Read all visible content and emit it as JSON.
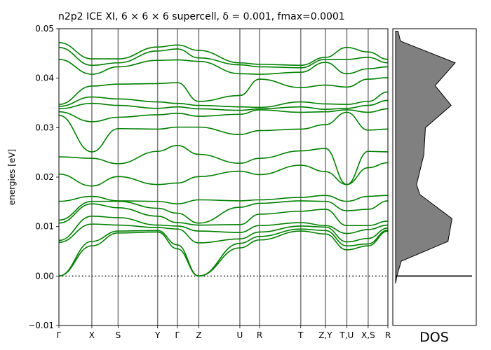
{
  "chart_data": [
    {
      "type": "line",
      "title": "n2p2 ICE XI, 6 × 6 × 6 supercell, δ = 0.001, fmax=0.0001",
      "xlabel": "",
      "ylabel": "energies [eV]",
      "ylim": [
        -0.01,
        0.05
      ],
      "yticks": [
        -0.01,
        0.0,
        0.01,
        0.02,
        0.03,
        0.04,
        0.05
      ],
      "ytick_labels": [
        "−0.01",
        "0.00",
        "0.01",
        "0.02",
        "0.03",
        "0.04",
        "0.05"
      ],
      "xlim": [
        0,
        1
      ],
      "high_symmetry_points": [
        {
          "label": "Γ",
          "x": 0.0
        },
        {
          "label": "X",
          "x": 0.1
        },
        {
          "label": "S",
          "x": 0.18
        },
        {
          "label": "Y",
          "x": 0.3
        },
        {
          "label": "Γ",
          "x": 0.36
        },
        {
          "label": "Z",
          "x": 0.425
        },
        {
          "label": "U",
          "x": 0.55
        },
        {
          "label": "R",
          "x": 0.61
        },
        {
          "label": "T",
          "x": 0.735
        },
        {
          "label": "Z,Y",
          "x": 0.81
        },
        {
          "label": "T,U",
          "x": 0.875
        },
        {
          "label": "X,S",
          "x": 0.94
        },
        {
          "label": "R",
          "x": 1.0
        }
      ],
      "line_color": "#008000",
      "zero_line": {
        "y": 0.0,
        "style": "dotted"
      },
      "bands": [
        [
          0.0,
          0.0061,
          0.0087,
          0.0089,
          0.0055,
          0.0,
          0.0057,
          0.0073,
          0.0091,
          0.0085,
          0.0053,
          0.0061,
          0.0091,
          0.0095
        ],
        [
          0.0,
          0.007,
          0.0091,
          0.0092,
          0.0063,
          0.0,
          0.0066,
          0.008,
          0.0095,
          0.0092,
          0.0061,
          0.0065,
          0.0093,
          0.0097
        ],
        [
          0.0068,
          0.0105,
          0.0103,
          0.0098,
          0.0095,
          0.0067,
          0.0075,
          0.0089,
          0.0101,
          0.0099,
          0.0069,
          0.0076,
          0.0097,
          0.0101
        ],
        [
          0.0072,
          0.0121,
          0.0118,
          0.0103,
          0.0101,
          0.0091,
          0.0088,
          0.0102,
          0.0108,
          0.0102,
          0.0086,
          0.0094,
          0.0103,
          0.0105
        ],
        [
          0.0107,
          0.0146,
          0.0138,
          0.0121,
          0.0108,
          0.0103,
          0.0104,
          0.0125,
          0.0131,
          0.0135,
          0.0102,
          0.0102,
          0.0111,
          0.0121
        ],
        [
          0.0113,
          0.0151,
          0.0151,
          0.0137,
          0.0127,
          0.0107,
          0.0139,
          0.0147,
          0.0152,
          0.0151,
          0.0132,
          0.0135,
          0.0152,
          0.0147
        ],
        [
          0.0151,
          0.0161,
          0.0152,
          0.0151,
          0.0146,
          0.0154,
          0.0152,
          0.0154,
          0.0159,
          0.0163,
          0.0151,
          0.0161,
          0.0163,
          0.0165
        ],
        [
          0.0206,
          0.0182,
          0.0201,
          0.0185,
          0.0188,
          0.0201,
          0.0212,
          0.0205,
          0.0224,
          0.0211,
          0.0185,
          0.0219,
          0.0229,
          0.0224
        ],
        [
          0.0241,
          0.0238,
          0.0227,
          0.0252,
          0.0264,
          0.0246,
          0.0228,
          0.0238,
          0.0253,
          0.0258,
          0.0185,
          0.0252,
          0.0251,
          0.0249
        ],
        [
          0.0325,
          0.0251,
          0.0298,
          0.0297,
          0.0301,
          0.0301,
          0.0286,
          0.0294,
          0.0297,
          0.0306,
          0.0331,
          0.0295,
          0.0297,
          0.0298
        ],
        [
          0.0332,
          0.0312,
          0.0321,
          0.0326,
          0.0329,
          0.0323,
          0.0327,
          0.0336,
          0.0331,
          0.0332,
          0.0336,
          0.0331,
          0.0338,
          0.0337
        ],
        [
          0.0338,
          0.0349,
          0.0345,
          0.0339,
          0.0342,
          0.0338,
          0.0335,
          0.0338,
          0.0342,
          0.0337,
          0.0339,
          0.0345,
          0.0355,
          0.0356
        ],
        [
          0.0343,
          0.0362,
          0.0358,
          0.0352,
          0.0349,
          0.0345,
          0.0342,
          0.0341,
          0.0352,
          0.0348,
          0.0347,
          0.0353,
          0.0372,
          0.0388
        ],
        [
          0.0347,
          0.0384,
          0.0388,
          0.0389,
          0.0391,
          0.0353,
          0.0365,
          0.0398,
          0.0381,
          0.0386,
          0.0382,
          0.0398,
          0.0401,
          0.0389
        ],
        [
          0.0438,
          0.0408,
          0.0423,
          0.0436,
          0.0437,
          0.0434,
          0.0409,
          0.0408,
          0.0412,
          0.0432,
          0.0409,
          0.0419,
          0.0423,
          0.0424
        ],
        [
          0.0462,
          0.0426,
          0.0431,
          0.0455,
          0.0459,
          0.0441,
          0.0427,
          0.0423,
          0.0421,
          0.0438,
          0.0438,
          0.0442,
          0.0431,
          0.0425
        ],
        [
          0.0472,
          0.0439,
          0.0439,
          0.0463,
          0.0467,
          0.0456,
          0.0431,
          0.0428,
          0.0426,
          0.0442,
          0.0462,
          0.0453,
          0.0438,
          0.0428
        ]
      ]
    },
    {
      "type": "area",
      "title": "",
      "xlabel": "DOS",
      "ylabel": "",
      "ylim": [
        -0.01,
        0.05
      ],
      "fill_color": "#808080",
      "y": [
        -0.0015,
        0.0,
        0.003,
        0.007,
        0.0116,
        0.0165,
        0.0185,
        0.0205,
        0.0245,
        0.03,
        0.0345,
        0.0385,
        0.0431,
        0.0475,
        0.0495
      ],
      "values": [
        0.0,
        0.15,
        0.7,
        6.5,
        7.0,
        3.0,
        2.6,
        2.9,
        3.5,
        3.7,
        6.9,
        4.9,
        7.4,
        0.6,
        0.3
      ]
    }
  ]
}
